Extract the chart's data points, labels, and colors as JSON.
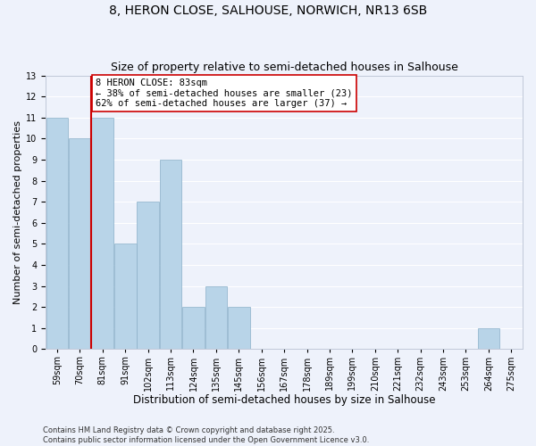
{
  "title": "8, HERON CLOSE, SALHOUSE, NORWICH, NR13 6SB",
  "subtitle": "Size of property relative to semi-detached houses in Salhouse",
  "xlabel": "Distribution of semi-detached houses by size in Salhouse",
  "ylabel": "Number of semi-detached properties",
  "bin_labels": [
    "59sqm",
    "70sqm",
    "81sqm",
    "91sqm",
    "102sqm",
    "113sqm",
    "124sqm",
    "135sqm",
    "145sqm",
    "156sqm",
    "167sqm",
    "178sqm",
    "189sqm",
    "199sqm",
    "210sqm",
    "221sqm",
    "232sqm",
    "243sqm",
    "253sqm",
    "264sqm",
    "275sqm"
  ],
  "counts": [
    11,
    10,
    11,
    5,
    7,
    9,
    2,
    3,
    2,
    0,
    0,
    0,
    0,
    0,
    0,
    0,
    0,
    0,
    0,
    1,
    0
  ],
  "bar_color": "#b8d4e8",
  "bar_edge_color": "#8aafc8",
  "reference_line_index": 2,
  "reference_line_color": "#cc0000",
  "annotation_text": "8 HERON CLOSE: 83sqm\n← 38% of semi-detached houses are smaller (23)\n62% of semi-detached houses are larger (37) →",
  "annotation_box_color": "#ffffff",
  "annotation_box_edge_color": "#cc0000",
  "ylim": [
    0,
    13
  ],
  "yticks": [
    0,
    1,
    2,
    3,
    4,
    5,
    6,
    7,
    8,
    9,
    10,
    11,
    12,
    13
  ],
  "background_color": "#eef2fb",
  "grid_color": "#ffffff",
  "footer_line1": "Contains HM Land Registry data © Crown copyright and database right 2025.",
  "footer_line2": "Contains public sector information licensed under the Open Government Licence v3.0.",
  "title_fontsize": 10,
  "subtitle_fontsize": 9,
  "xlabel_fontsize": 8.5,
  "ylabel_fontsize": 8,
  "tick_fontsize": 7,
  "annotation_fontsize": 7.5,
  "footer_fontsize": 6
}
